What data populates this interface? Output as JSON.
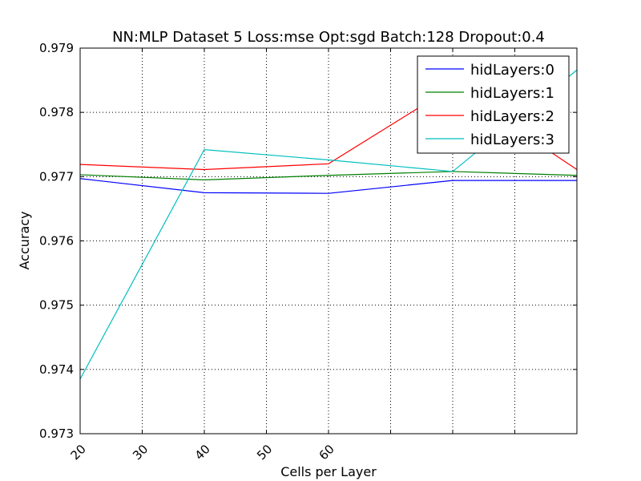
{
  "chart_data": {
    "type": "line",
    "title": "NN:MLP Dataset 5 Loss:mse  Opt:sgd  Batch:128  Dropout:0.4",
    "xlabel": "Cells per Layer",
    "ylabel": "Accuracy",
    "x": [
      20,
      40,
      60,
      80,
      100
    ],
    "xlim": [
      20,
      100
    ],
    "ylim": [
      0.973,
      0.979
    ],
    "x_ticks": [
      20,
      30,
      40,
      50,
      60
    ],
    "y_ticks": [
      0.973,
      0.974,
      0.975,
      0.976,
      0.977,
      0.978,
      0.979
    ],
    "y_tick_labels": [
      "0.973",
      "0.974",
      "0.975",
      "0.976",
      "0.977",
      "0.978",
      "0.979"
    ],
    "grid": true,
    "legend_position": "top-right",
    "series": [
      {
        "name": "hidLayers:0",
        "color": "#0000ff",
        "values": [
          0.97697,
          0.97675,
          0.97674,
          0.97694,
          0.97694
        ]
      },
      {
        "name": "hidLayers:1",
        "color": "#008000",
        "values": [
          0.97703,
          0.97695,
          0.97702,
          0.97708,
          0.97702
        ]
      },
      {
        "name": "hidLayers:2",
        "color": "#ff0000",
        "values": [
          0.97719,
          0.97711,
          0.9772,
          0.9784,
          0.97711
        ]
      },
      {
        "name": "hidLayers:3",
        "color": "#00bfbf",
        "values": [
          0.97385,
          0.97742,
          0.97726,
          0.97708,
          0.97866
        ]
      }
    ]
  }
}
